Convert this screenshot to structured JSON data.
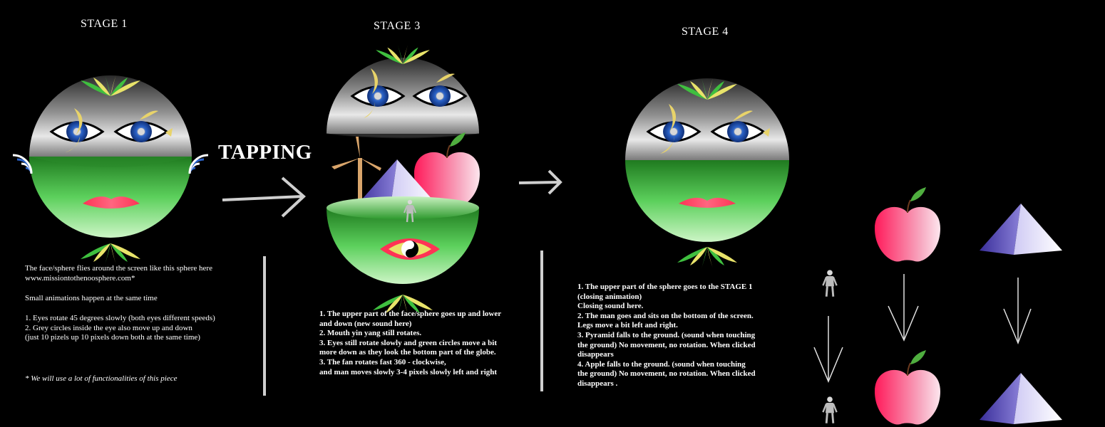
{
  "stages": {
    "stage1_title": "STAGE 1",
    "stage3_title": "STAGE 3",
    "stage4_title": "STAGE 4"
  },
  "transition_label": "TAPPING",
  "notes": {
    "stage1": {
      "intro": "The face/sphere  flies around the screen like this sphere here\nwww.missiontothenoosphere.com*",
      "small": "Small animations happen at the same time",
      "list": "1. Eyes rotate 45 degrees slowly (both eyes different speeds)\n2. Grey circles inside the eye also  move  up and down\n(just 10 pizels up 10 pixels down both at the same time)",
      "footnote": "* We will use a lot of functionalities of this piece"
    },
    "stage3": "1. The upper part of the face/sphere goes up and lower\nand down (new sound here)\n2. Mouth yin yang still rotates.\n3. Eyes still rotate slowly and green circles move a bit\nmore down as they look the bottom part of the globe.\n3. The fan rotates fast 360 - clockwise,\nand man moves slowly 3-4 pixels slowly left and right",
    "stage4": "1. The upper  part of the sphere goes to the STAGE 1\n(closing animation)\nClosing sound here.\n2. The man goes and sits on the bottom of the screen.\nLegs move a bit left and right.\n3. Pyramid falls to the ground. (sound when touching\nthe ground) No movement, no rotation. When clicked\ndisappears\n4. Apple falls to the ground. (sound when touching\nthe ground) No movement, no rotation. When clicked\ndisappears ."
  },
  "colors": {
    "background": "#000000",
    "green": "#3fb03f",
    "grey": "#9a9a9a",
    "eye_blue": "#1f4fa8",
    "apple_red": "#f0406a",
    "lips": "#ff3355",
    "pyramid": "#3a2f8f"
  }
}
